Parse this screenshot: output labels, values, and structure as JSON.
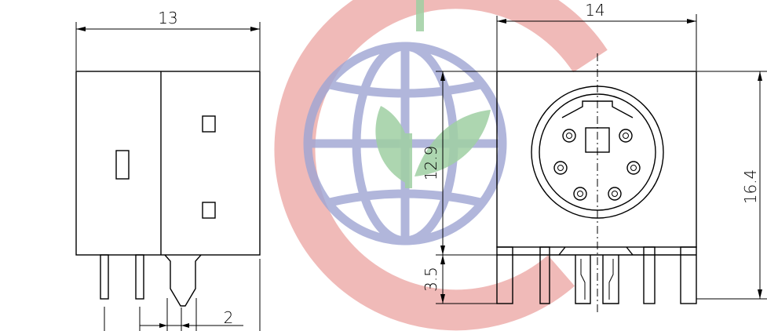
{
  "dimensions": {
    "left_width": "13",
    "right_width": "14",
    "pin_spacing": "2",
    "body_height": "12.9",
    "pin_length": "3.5",
    "total_height": "16.4"
  },
  "watermark": {
    "ring_color": "#e8938f",
    "globe_color": "#7d86c4",
    "leaf_color": "#7fbf84"
  }
}
